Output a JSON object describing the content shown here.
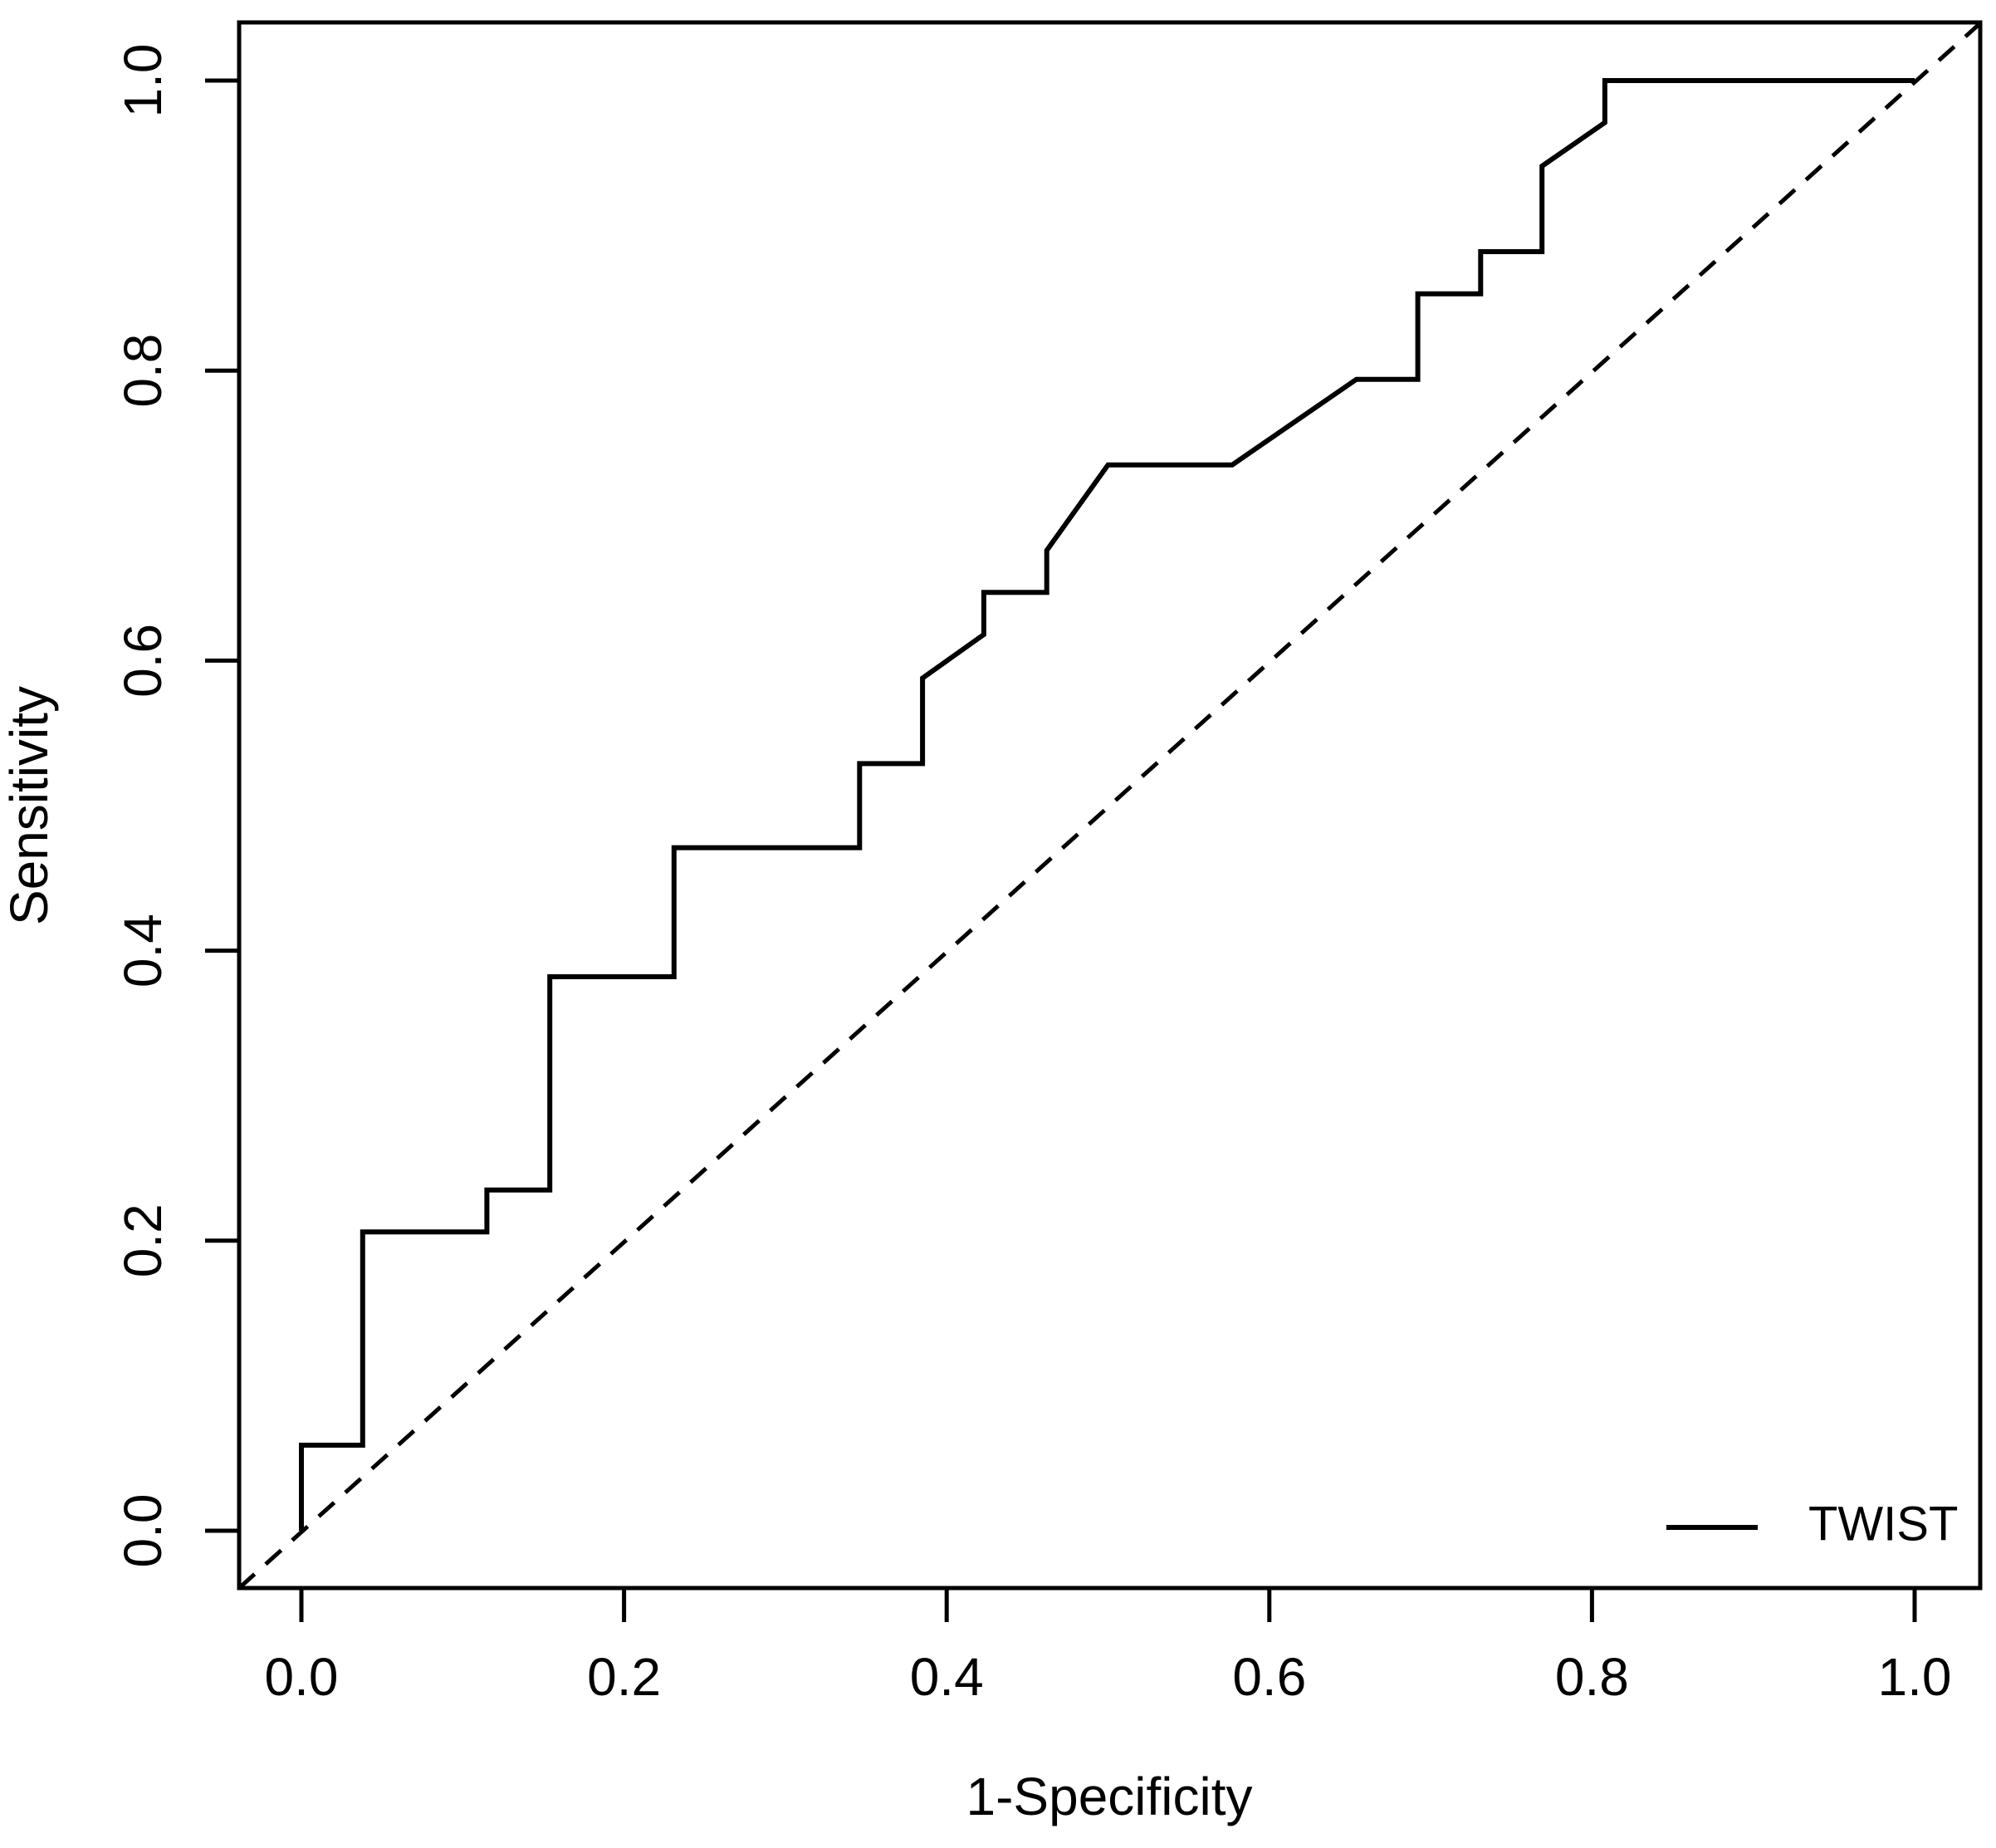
{
  "chart_data": {
    "type": "line",
    "subtype": "roc-step-curve",
    "title": "",
    "xlabel": "1-Specificity",
    "ylabel": "Sensitivity",
    "xlim": [
      0,
      1
    ],
    "ylim": [
      0,
      1
    ],
    "axis_padding_fraction": 0.04,
    "grid": false,
    "plot_border": true,
    "x_ticks": [
      0.0,
      0.2,
      0.4,
      0.6,
      0.8,
      1.0
    ],
    "y_ticks": [
      0.0,
      0.2,
      0.4,
      0.6,
      0.8,
      1.0
    ],
    "x_tick_labels": [
      "0.0",
      "0.2",
      "0.4",
      "0.6",
      "0.8",
      "1.0"
    ],
    "y_tick_labels": [
      "0.0",
      "0.2",
      "0.4",
      "0.6",
      "0.8",
      "1.0"
    ],
    "reference_line": {
      "name": "chance-diagonal",
      "style": "dashed",
      "color": "#000000",
      "from": [
        0,
        0
      ],
      "to": [
        1,
        1
      ]
    },
    "legend": {
      "position": "bottomright",
      "entries": [
        {
          "label": "TWIST",
          "line_style": "solid",
          "color": "#000000"
        }
      ]
    },
    "series": [
      {
        "name": "TWIST",
        "color": "#000000",
        "points": [
          [
            0.0,
            0.0
          ],
          [
            0.0,
            0.059
          ],
          [
            0.038,
            0.059
          ],
          [
            0.038,
            0.206
          ],
          [
            0.115,
            0.206
          ],
          [
            0.115,
            0.235
          ],
          [
            0.154,
            0.235
          ],
          [
            0.154,
            0.382
          ],
          [
            0.231,
            0.382
          ],
          [
            0.231,
            0.471
          ],
          [
            0.346,
            0.471
          ],
          [
            0.346,
            0.529
          ],
          [
            0.385,
            0.529
          ],
          [
            0.385,
            0.588
          ],
          [
            0.423,
            0.618
          ],
          [
            0.423,
            0.647
          ],
          [
            0.462,
            0.647
          ],
          [
            0.462,
            0.676
          ],
          [
            0.5,
            0.735
          ],
          [
            0.577,
            0.735
          ],
          [
            0.654,
            0.794
          ],
          [
            0.692,
            0.794
          ],
          [
            0.692,
            0.853
          ],
          [
            0.731,
            0.853
          ],
          [
            0.731,
            0.882
          ],
          [
            0.769,
            0.882
          ],
          [
            0.769,
            0.941
          ],
          [
            0.808,
            0.971
          ],
          [
            0.808,
            1.0
          ],
          [
            1.0,
            1.0
          ]
        ]
      }
    ]
  },
  "colors": {
    "foreground": "#000000",
    "background": "#ffffff"
  }
}
